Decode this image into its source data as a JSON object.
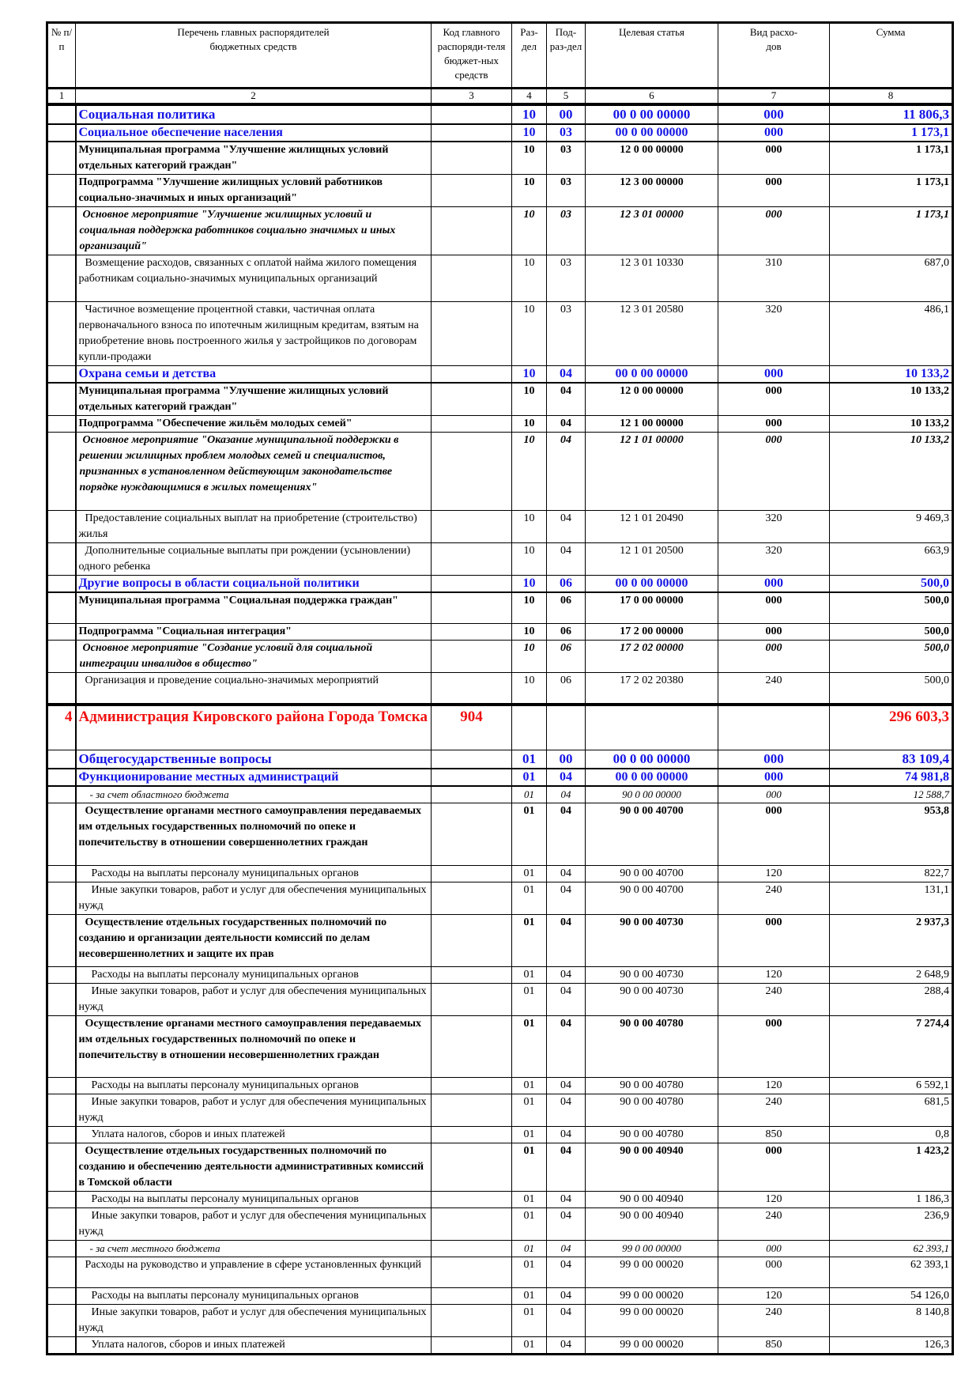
{
  "header": {
    "num": "№ п/п",
    "name": "Перечень главных распорядителей бюджетных средств",
    "code": "Код главного распоряди-теля бюджет-ных средств",
    "razdel": "Раз-дел",
    "podrazdel": "Под-раз-дел",
    "target": "Целевая статья",
    "vid": "Вид расхо-дов",
    "sum": "Сумма"
  },
  "column_numbers": [
    "1",
    "2",
    "3",
    "4",
    "5",
    "6",
    "7",
    "8"
  ],
  "colors": {
    "section": "#1414e6",
    "admin": "#f01010"
  },
  "rows": [
    {
      "type": "section",
      "name": "Социальная политика",
      "razdel": "10",
      "podrazdel": "00",
      "target": "00 0 00 00000",
      "vid": "000",
      "sum": "11 806,3"
    },
    {
      "type": "subsection",
      "name": "Социальное обеспечение населения",
      "razdel": "10",
      "podrazdel": "03",
      "target": "00 0 00 00000",
      "vid": "000",
      "sum": "1 173,1"
    },
    {
      "type": "program",
      "name": "Муниципальная программа \"Улучшение жилищных условий отдельных категорий граждан\"",
      "razdel": "10",
      "podrazdel": "03",
      "target": "12 0 00 00000",
      "vid": "000",
      "sum": "1 173,1"
    },
    {
      "type": "program",
      "name": "Подпрограмма \"Улучшение жилищных условий работников социально-значимых и иных организаций\"",
      "razdel": "10",
      "podrazdel": "03",
      "target": "12 3 00 00000",
      "vid": "000",
      "sum": "1 173,1"
    },
    {
      "type": "event",
      "name": "Основное мероприятие \"Улучшение жилищных условий и социальная поддержка работников социально значимых и иных организаций\"",
      "razdel": "10",
      "podrazdel": "03",
      "target": "12 3 01 00000",
      "vid": "000",
      "sum": "1 173,1"
    },
    {
      "type": "item",
      "name": "Возмещение расходов, связанных с оплатой найма жилого помещения работникам социально-значимых муниципальных организаций",
      "razdel": "10",
      "podrazdel": "03",
      "target": "12 3 01 10330",
      "vid": "310",
      "sum": "687,0"
    },
    {
      "type": "item",
      "name": "Частичное возмещение процентной ставки, частичная оплата первоначального взноса по ипотечным жилищным кредитам, взятым на приобретение вновь построенного жилья у застройщиков по договорам купли-продажи",
      "razdel": "10",
      "podrazdel": "03",
      "target": "12 3 01 20580",
      "vid": "320",
      "sum": "486,1"
    },
    {
      "type": "subsection",
      "name": "Охрана семьи и детства",
      "razdel": "10",
      "podrazdel": "04",
      "target": "00 0 00 00000",
      "vid": "000",
      "sum": "10 133,2"
    },
    {
      "type": "program",
      "name": "Муниципальная программа \"Улучшение жилищных условий отдельных категорий граждан\"",
      "razdel": "10",
      "podrazdel": "04",
      "target": "12 0 00 00000",
      "vid": "000",
      "sum": "10 133,2"
    },
    {
      "type": "program",
      "name": "Подпрограмма \"Обеспечение жильём молодых семей\"",
      "razdel": "10",
      "podrazdel": "04",
      "target": "12 1 00 00000",
      "vid": "000",
      "sum": "10 133,2"
    },
    {
      "type": "event",
      "name": "Основное мероприятие \"Оказание муниципальной поддержки в решении жилищных проблем молодых семей и специалистов, признанных в установленном действующим законодательстве порядке нуждающимися в жилых помещениях\"",
      "razdel": "10",
      "podrazdel": "04",
      "target": "12 1 01 00000",
      "vid": "000",
      "sum": "10 133,2"
    },
    {
      "type": "item",
      "name": "Предоставление социальных выплат на приобретение (строительство) жилья",
      "razdel": "10",
      "podrazdel": "04",
      "target": "12 1 01 20490",
      "vid": "320",
      "sum": "9 469,3"
    },
    {
      "type": "item",
      "name": "Дополнительные социальные выплаты при рождении (усыновлении) одного ребенка",
      "razdel": "10",
      "podrazdel": "04",
      "target": "12 1 01 20500",
      "vid": "320",
      "sum": "663,9"
    },
    {
      "type": "subsection",
      "name": "Другие вопросы в области социальной политики",
      "razdel": "10",
      "podrazdel": "06",
      "target": "00 0 00 00000",
      "vid": "000",
      "sum": "500,0"
    },
    {
      "type": "program",
      "name": "Муниципальная программа \"Социальная поддержка граждан\"",
      "razdel": "10",
      "podrazdel": "06",
      "target": "17 0 00 00000",
      "vid": "000",
      "sum": "500,0"
    },
    {
      "type": "program",
      "name": "Подпрограмма \"Социальная интеграция\"",
      "razdel": "10",
      "podrazdel": "06",
      "target": "17 2 00 00000",
      "vid": "000",
      "sum": "500,0"
    },
    {
      "type": "event",
      "name": "Основное мероприятие \"Создание условий для социальной интеграции инвалидов в общество\"",
      "razdel": "10",
      "podrazdel": "06",
      "target": "17 2 02 00000",
      "vid": "000",
      "sum": "500,0"
    },
    {
      "type": "item",
      "name": "Организация и проведение социально-значимых мероприятий",
      "razdel": "10",
      "podrazdel": "06",
      "target": "17 2 02 20380",
      "vid": "240",
      "sum": "500,0"
    },
    {
      "type": "admin",
      "num": "4",
      "name": "Администрация Кировского района Города Томска",
      "code": "904",
      "sum": "296 603,3"
    },
    {
      "type": "section",
      "name": "Общегосударственные вопросы",
      "razdel": "01",
      "podrazdel": "00",
      "target": "00 0 00 00000",
      "vid": "000",
      "sum": "83 109,4"
    },
    {
      "type": "subsection",
      "name": "Функционирование местных администраций",
      "razdel": "01",
      "podrazdel": "04",
      "target": "00 0 00 00000",
      "vid": "000",
      "sum": "74 981,8"
    },
    {
      "type": "source",
      "name": "- за счет областного бюджета",
      "razdel": "01",
      "podrazdel": "04",
      "target": "90 0 00 00000",
      "vid": "000",
      "sum": "12 588,7"
    },
    {
      "type": "boldItem",
      "name": "Осуществление органами местного самоуправления передаваемых им отдельных государственных полномочий по опеке и попечительству в отношении совершеннолетних граждан",
      "razdel": "01",
      "podrazdel": "04",
      "target": "90 0 00 40700",
      "vid": "000",
      "sum": "953,8"
    },
    {
      "type": "item2",
      "name": "Расходы на выплаты персоналу муниципальных органов",
      "razdel": "01",
      "podrazdel": "04",
      "target": "90 0 00 40700",
      "vid": "120",
      "sum": "822,7"
    },
    {
      "type": "item2",
      "name": "Иные закупки товаров, работ и услуг для обеспечения муниципальных нужд",
      "razdel": "01",
      "podrazdel": "04",
      "target": "90 0 00 40700",
      "vid": "240",
      "sum": "131,1"
    },
    {
      "type": "boldItem",
      "name": "Осуществление отдельных государственных полномочий по созданию и организации деятельности комиссий по делам несовершеннолетних и защите их прав",
      "razdel": "01",
      "podrazdel": "04",
      "target": "90 0 00 40730",
      "vid": "000",
      "sum": "2 937,3"
    },
    {
      "type": "item2",
      "name": "Расходы на выплаты персоналу муниципальных органов",
      "razdel": "01",
      "podrazdel": "04",
      "target": "90 0 00 40730",
      "vid": "120",
      "sum": "2 648,9"
    },
    {
      "type": "item2",
      "name": "Иные закупки товаров, работ и услуг для обеспечения муниципальных нужд",
      "razdel": "01",
      "podrazdel": "04",
      "target": "90 0 00 40730",
      "vid": "240",
      "sum": "288,4"
    },
    {
      "type": "boldItem",
      "name": "Осуществление органами местного самоуправления передаваемых им отдельных государственных полномочий по опеке и попечительству в отношении несовершеннолетних граждан",
      "razdel": "01",
      "podrazdel": "04",
      "target": "90 0 00 40780",
      "vid": "000",
      "sum": "7 274,4"
    },
    {
      "type": "item2",
      "name": "Расходы на выплаты персоналу муниципальных органов",
      "razdel": "01",
      "podrazdel": "04",
      "target": "90 0 00 40780",
      "vid": "120",
      "sum": "6 592,1"
    },
    {
      "type": "item2",
      "name": "Иные закупки товаров, работ и услуг для обеспечения муниципальных нужд",
      "razdel": "01",
      "podrazdel": "04",
      "target": "90 0 00 40780",
      "vid": "240",
      "sum": "681,5"
    },
    {
      "type": "item2",
      "name": "Уплата налогов, сборов и иных платежей",
      "razdel": "01",
      "podrazdel": "04",
      "target": "90 0 00 40780",
      "vid": "850",
      "sum": "0,8"
    },
    {
      "type": "boldItem",
      "name": "Осуществление отдельных государственных полномочий по созданию и обеспечению деятельности административных комиссий в Томской области",
      "razdel": "01",
      "podrazdel": "04",
      "target": "90 0 00 40940",
      "vid": "000",
      "sum": "1 423,2"
    },
    {
      "type": "item2",
      "name": "Расходы на выплаты персоналу муниципальных органов",
      "razdel": "01",
      "podrazdel": "04",
      "target": "90 0 00 40940",
      "vid": "120",
      "sum": "1 186,3"
    },
    {
      "type": "item2",
      "name": "Иные закупки товаров, работ и услуг для обеспечения муниципальных нужд",
      "razdel": "01",
      "podrazdel": "04",
      "target": "90 0 00 40940",
      "vid": "240",
      "sum": "236,9"
    },
    {
      "type": "source",
      "name": "- за счет местного бюджета",
      "razdel": "01",
      "podrazdel": "04",
      "target": "99 0 00 00000",
      "vid": "000",
      "sum": "62 393,1"
    },
    {
      "type": "item",
      "name": "Расходы на руководство и управление в сфере установленных функций",
      "razdel": "01",
      "podrazdel": "04",
      "target": "99 0 00 00020",
      "vid": "000",
      "sum": "62 393,1"
    },
    {
      "type": "item2",
      "name": "Расходы на выплаты персоналу муниципальных органов",
      "razdel": "01",
      "podrazdel": "04",
      "target": "99 0 00 00020",
      "vid": "120",
      "sum": "54 126,0"
    },
    {
      "type": "item2",
      "name": "Иные закупки товаров, работ и услуг для обеспечения муниципальных нужд",
      "razdel": "01",
      "podrazdel": "04",
      "target": "99 0 00 00020",
      "vid": "240",
      "sum": "8 140,8"
    },
    {
      "type": "item2",
      "name": "Уплата налогов, сборов и иных платежей",
      "razdel": "01",
      "podrazdel": "04",
      "target": "99 0 00 00020",
      "vid": "850",
      "sum": "126,3"
    }
  ]
}
